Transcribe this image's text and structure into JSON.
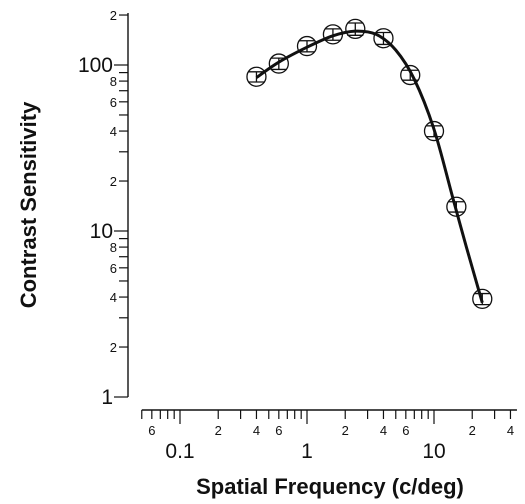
{
  "chart_data": {
    "type": "scatter",
    "xlabel": "Spatial Frequency (c/deg)",
    "ylabel": "Contrast Sensitivity",
    "x_scale": "log",
    "y_scale": "log",
    "xlim": [
      0.05,
      45
    ],
    "ylim": [
      1,
      200
    ],
    "grid": false,
    "x_major_ticks": [
      {
        "value": 0.1,
        "label": "0.1"
      },
      {
        "value": 1,
        "label": "1"
      },
      {
        "value": 10,
        "label": "10"
      }
    ],
    "x_minor_labeled_ticks": [
      {
        "value": 0.06,
        "label": "6"
      },
      {
        "value": 0.2,
        "label": "2"
      },
      {
        "value": 0.4,
        "label": "4"
      },
      {
        "value": 0.6,
        "label": "6"
      },
      {
        "value": 2,
        "label": "2"
      },
      {
        "value": 4,
        "label": "4"
      },
      {
        "value": 6,
        "label": "6"
      },
      {
        "value": 20,
        "label": "2"
      },
      {
        "value": 40,
        "label": "4"
      }
    ],
    "y_major_ticks": [
      {
        "value": 1,
        "label": "1"
      },
      {
        "value": 10,
        "label": "10"
      },
      {
        "value": 100,
        "label": "100"
      }
    ],
    "y_minor_labeled_ticks": [
      {
        "value": 2,
        "label": "2"
      },
      {
        "value": 4,
        "label": "4"
      },
      {
        "value": 6,
        "label": "6"
      },
      {
        "value": 8,
        "label": "8"
      },
      {
        "value": 20,
        "label": "2"
      },
      {
        "value": 40,
        "label": "4"
      },
      {
        "value": 60,
        "label": "6"
      },
      {
        "value": 80,
        "label": "8"
      },
      {
        "value": 200,
        "label": "2"
      }
    ],
    "series": [
      {
        "points": [
          {
            "x": 0.4,
            "y": 85,
            "err": 6
          },
          {
            "x": 0.6,
            "y": 102,
            "err": 8
          },
          {
            "x": 1.0,
            "y": 130,
            "err": 10
          },
          {
            "x": 1.6,
            "y": 153,
            "err": 12
          },
          {
            "x": 2.4,
            "y": 165,
            "err": 14
          },
          {
            "x": 4.0,
            "y": 145,
            "err": 12
          },
          {
            "x": 6.5,
            "y": 87,
            "err": 6
          },
          {
            "x": 10,
            "y": 40,
            "err": 3
          },
          {
            "x": 15,
            "y": 14,
            "err": 1
          },
          {
            "x": 24,
            "y": 3.9,
            "err": 0.3
          }
        ]
      }
    ],
    "fit_curve": {
      "points": [
        {
          "x": 0.4,
          "y": 84
        },
        {
          "x": 0.6,
          "y": 104
        },
        {
          "x": 1.0,
          "y": 128
        },
        {
          "x": 1.6,
          "y": 150
        },
        {
          "x": 2.4,
          "y": 160
        },
        {
          "x": 3.5,
          "y": 153
        },
        {
          "x": 5.0,
          "y": 123
        },
        {
          "x": 7.0,
          "y": 82
        },
        {
          "x": 10,
          "y": 41
        },
        {
          "x": 14,
          "y": 16
        },
        {
          "x": 18,
          "y": 8
        },
        {
          "x": 24,
          "y": 3.7
        }
      ]
    }
  }
}
